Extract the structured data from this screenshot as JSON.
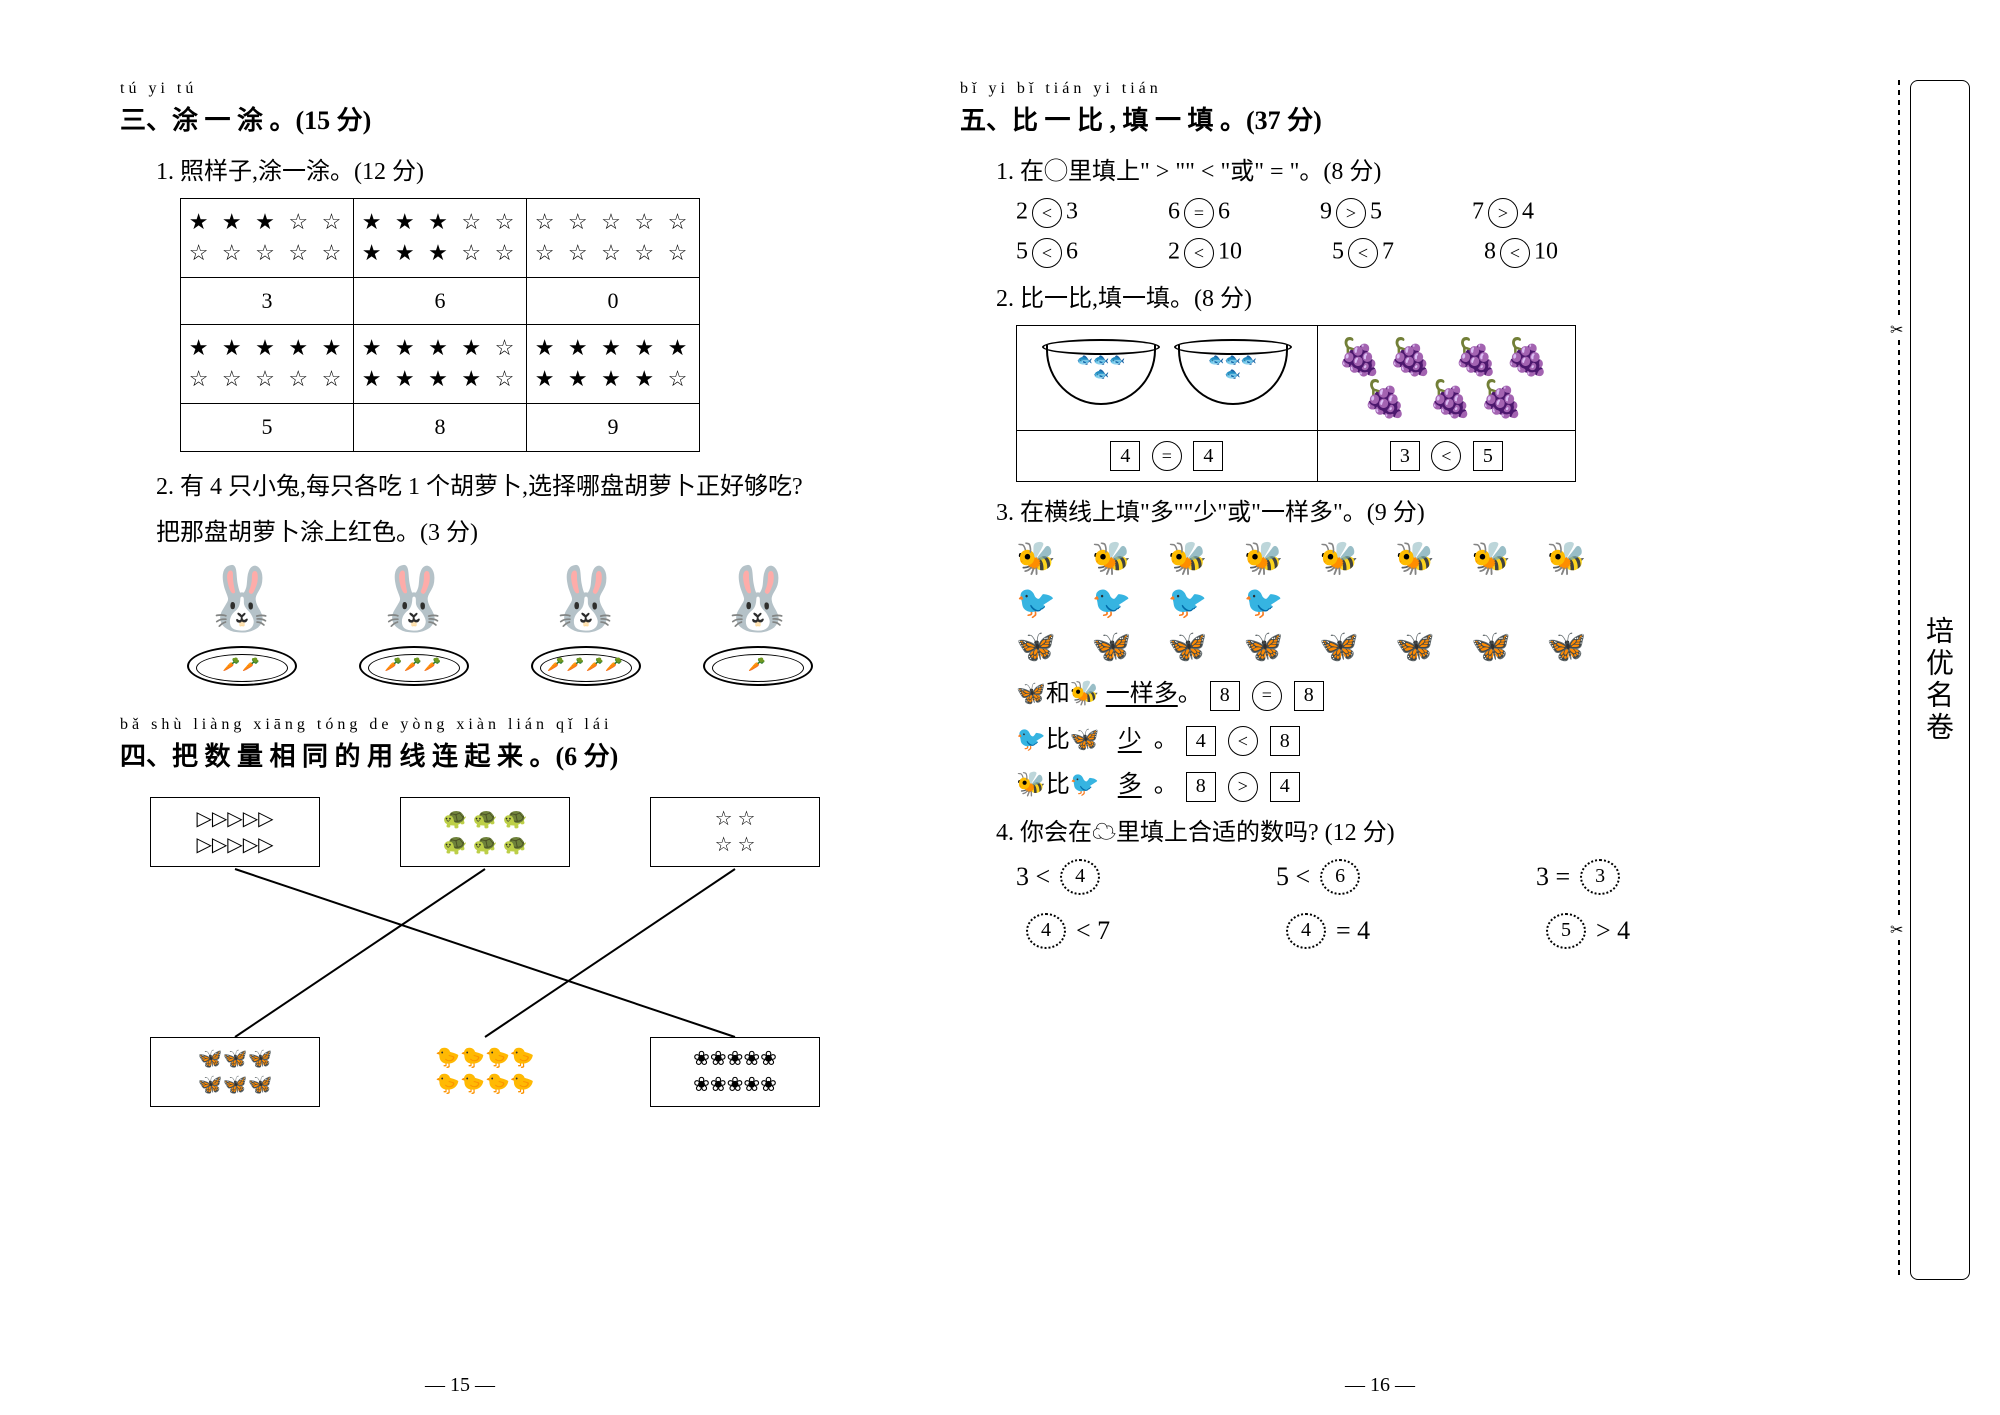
{
  "section3": {
    "pinyin": "tú  yi  tú",
    "title": "三、涂 一 涂 。(15 分)",
    "q1": {
      "label": "1. 照样子,涂一涂。(12 分)",
      "row1": {
        "a": "★ ★ ★ ☆ ☆\n☆ ☆ ☆ ☆ ☆",
        "b": "★ ★ ★ ☆ ☆\n★ ★ ★ ☆ ☆",
        "c": "☆ ☆ ☆ ☆ ☆\n☆ ☆ ☆ ☆ ☆"
      },
      "row1nums": {
        "a": "3",
        "b": "6",
        "c": "0"
      },
      "row2": {
        "a": "★ ★ ★ ★ ★\n☆ ☆ ☆ ☆ ☆",
        "b": "★ ★ ★ ★ ☆\n★ ★ ★ ★ ☆",
        "c": "★ ★ ★ ★ ★\n★ ★ ★ ★ ☆"
      },
      "row2nums": {
        "a": "5",
        "b": "8",
        "c": "9"
      }
    },
    "q2": {
      "line1": "2. 有 4 只小兔,每只各吃 1 个胡萝卜,选择哪盘胡萝卜正好够吃?",
      "line2": "把那盘胡萝卜涂上红色。(3 分)",
      "plates": [
        "🥕🥕",
        "🥕🥕🥕",
        "🥕🥕🥕🥕",
        "🥕"
      ]
    }
  },
  "section4": {
    "pinyin": "bǎ shù liàng xiāng tóng de yòng xiàn lián qǐ  lái",
    "title": "四、把 数 量 相 同 的 用 线 连 起 来 。(6 分)",
    "top": {
      "a": "▷▷▷▷▷\n▷▷▷▷▷",
      "b": "🐢 🐢 🐢\n🐢 🐢 🐢",
      "c": "☆  ☆\n☆  ☆"
    },
    "bot": {
      "a": "🦋🦋🦋\n🦋🦋🦋",
      "b": "🐤🐤🐤🐤\n🐤🐤🐤🐤",
      "c": "❀❀❀❀❀\n❀❀❀❀❀"
    }
  },
  "page15": "— 15 —",
  "section5": {
    "pinyin": "bǐ  yi  bǐ    tián yi tián",
    "title": "五、比 一 比 , 填 一 填 。(37 分)",
    "q1": {
      "label": "1. 在◯里填上\" > \"\" < \"或\" = \"。(8 分)",
      "cells": [
        [
          "2",
          "<",
          "3"
        ],
        [
          "6",
          "=",
          "6"
        ],
        [
          "9",
          ">",
          "5"
        ],
        [
          "7",
          ">",
          "4"
        ],
        [
          "5",
          "<",
          "6"
        ],
        [
          "2",
          "<",
          "10"
        ],
        [
          "5",
          "<",
          "7"
        ],
        [
          "8",
          "<",
          "10"
        ]
      ]
    },
    "q2": {
      "label": "2. 比一比,填一填。(8 分)",
      "left": {
        "a": "4",
        "op": "=",
        "b": "4"
      },
      "right": {
        "a": "3",
        "op": "<",
        "b": "5"
      },
      "fruits_right": "🍇🍇 🍇🍇\n🍇   🍇🍇"
    },
    "q3": {
      "label": "3. 在横线上填\"多\"\"少\"或\"一样多\"。(9 分)",
      "row_bees": "🐝 🐝 🐝 🐝 🐝 🐝 🐝 🐝",
      "row_birds": "🐦 🐦 🐦 🐦",
      "row_butter": "🦋 🦋 🦋 🦋 🦋 🦋 🦋 🦋",
      "line1_pre": "🦋和🐝",
      "line1_ans": "一样多",
      "line1_nums": [
        "8",
        "=",
        "8"
      ],
      "line2_pre": "🐦比🦋",
      "line2_ans": "少",
      "line2_nums": [
        "4",
        "<",
        "8"
      ],
      "line3_pre": "🐝比🐦",
      "line3_ans": "多",
      "line3_nums": [
        "8",
        ">",
        "4"
      ]
    },
    "q4": {
      "label": "4. 你会在☁里填上合适的数吗? (12 分)",
      "cells": [
        {
          "l": "3 <",
          "v": "4",
          "r": ""
        },
        {
          "l": "5 <",
          "v": "6",
          "r": ""
        },
        {
          "l": "3 =",
          "v": "3",
          "r": ""
        },
        {
          "l": "",
          "v": "4",
          "r": "< 7"
        },
        {
          "l": "",
          "v": "4",
          "r": "= 4"
        },
        {
          "l": "",
          "v": "5",
          "r": "> 4"
        }
      ]
    }
  },
  "page16": "— 16 —",
  "sidetab": "培优名卷"
}
